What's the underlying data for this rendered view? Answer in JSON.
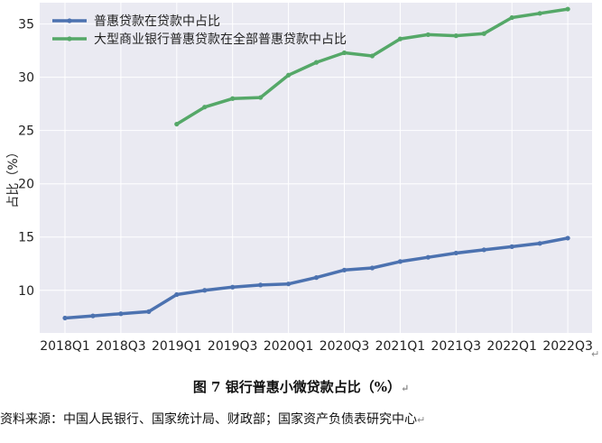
{
  "chart_data": {
    "type": "line",
    "title": "",
    "xlabel": "",
    "ylabel": "占比（%）",
    "ylim": [
      6,
      37
    ],
    "yticks": [
      10,
      15,
      20,
      25,
      30,
      35
    ],
    "grid": true,
    "legend_position": "top-left",
    "categories": [
      "2018Q1",
      "2018Q2",
      "2018Q3",
      "2018Q4",
      "2019Q1",
      "2019Q2",
      "2019Q3",
      "2019Q4",
      "2020Q1",
      "2020Q2",
      "2020Q3",
      "2020Q4",
      "2021Q1",
      "2021Q2",
      "2021Q3",
      "2021Q4",
      "2022Q1",
      "2022Q2",
      "2022Q3"
    ],
    "xtick_labels": [
      "2018Q1",
      "2018Q3",
      "2019Q1",
      "2019Q3",
      "2020Q1",
      "2020Q3",
      "2021Q1",
      "2021Q3",
      "2022Q1",
      "2022Q3"
    ],
    "series": [
      {
        "name": "普惠贷款在贷款中占比",
        "color": "#4c72b0",
        "values": [
          7.4,
          7.6,
          7.8,
          8.0,
          9.6,
          10.0,
          10.3,
          10.5,
          10.6,
          11.2,
          11.9,
          12.1,
          12.7,
          13.1,
          13.5,
          13.8,
          14.1,
          14.4,
          14.9
        ]
      },
      {
        "name": "大型商业银行普惠贷款在全部普惠贷款中占比",
        "color": "#55a868",
        "values": [
          null,
          null,
          null,
          null,
          25.6,
          27.2,
          28.0,
          28.1,
          30.2,
          31.4,
          32.3,
          32.0,
          33.6,
          34.0,
          33.9,
          34.1,
          35.6,
          36.0,
          36.4
        ]
      }
    ]
  },
  "caption": {
    "text": "图 7  银行普惠小微贷款占比（%）",
    "mark": "↵"
  },
  "source": {
    "text": "资料来源：中国人民银行、国家统计局、财政部；国家资产负债表研究中心",
    "mark": "↵"
  },
  "side_mark": "↵"
}
